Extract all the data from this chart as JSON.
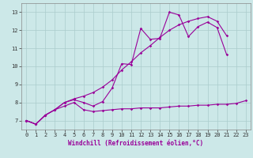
{
  "xlabel": "Windchill (Refroidissement éolien,°C)",
  "background_color": "#cce8e8",
  "line_color": "#990099",
  "grid_color": "#aacccc",
  "xlim": [
    -0.5,
    23.5
  ],
  "ylim": [
    6.5,
    13.5
  ],
  "xticks": [
    0,
    1,
    2,
    3,
    4,
    5,
    6,
    7,
    8,
    9,
    10,
    11,
    12,
    13,
    14,
    15,
    16,
    17,
    18,
    19,
    20,
    21,
    22,
    23
  ],
  "yticks": [
    7,
    8,
    9,
    10,
    11,
    12,
    13
  ],
  "series1_x": [
    0,
    1,
    2,
    3,
    4,
    5,
    6,
    7,
    8,
    9,
    10,
    11,
    12,
    13,
    14,
    15,
    16,
    17,
    18,
    19,
    20,
    21,
    22,
    23
  ],
  "series1_y": [
    7.0,
    6.8,
    7.3,
    7.6,
    7.8,
    8.0,
    7.6,
    7.5,
    7.55,
    7.6,
    7.65,
    7.65,
    7.7,
    7.7,
    7.7,
    7.75,
    7.8,
    7.8,
    7.85,
    7.85,
    7.9,
    7.9,
    7.95,
    8.1
  ],
  "series2_x": [
    0,
    1,
    2,
    3,
    4,
    5,
    6,
    7,
    8,
    9,
    10,
    11,
    12,
    13,
    14,
    15,
    16,
    17,
    18,
    19,
    20,
    21,
    22,
    23
  ],
  "series2_y": [
    7.0,
    6.8,
    7.3,
    7.6,
    8.0,
    8.15,
    8.0,
    7.8,
    8.05,
    8.8,
    10.15,
    10.1,
    12.1,
    11.5,
    11.55,
    13.0,
    12.85,
    11.65,
    12.2,
    12.45,
    12.15,
    10.65,
    null,
    null
  ],
  "series3_x": [
    0,
    1,
    2,
    3,
    4,
    5,
    6,
    7,
    8,
    9,
    10,
    11,
    12,
    13,
    14,
    15,
    16,
    17,
    18,
    19,
    20,
    21,
    22,
    23
  ],
  "series3_y": [
    7.0,
    6.8,
    7.3,
    7.6,
    8.0,
    8.2,
    8.35,
    8.55,
    8.85,
    9.25,
    9.8,
    10.25,
    10.75,
    11.15,
    11.6,
    12.0,
    12.3,
    12.5,
    12.65,
    12.75,
    12.5,
    11.7,
    null,
    null
  ],
  "marker_size": 1.8,
  "line_width": 0.8,
  "tick_fontsize": 5.0,
  "xlabel_fontsize": 5.5
}
